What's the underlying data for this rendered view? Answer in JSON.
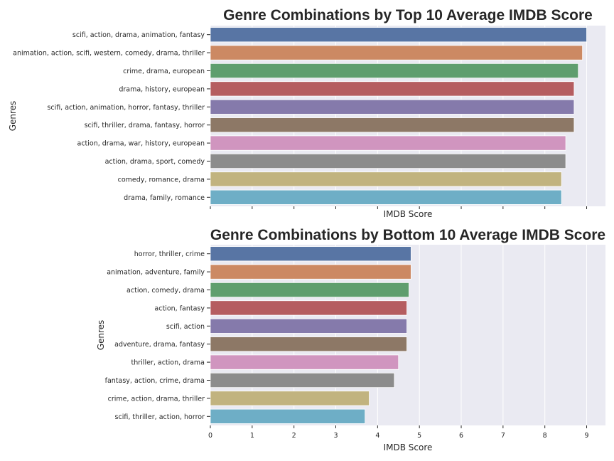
{
  "chart_data": [
    {
      "type": "bar",
      "orientation": "horizontal",
      "title": "Genre Combinations by Top 10 Average IMDB Score",
      "xlabel": "IMDB Score",
      "ylabel": "Genres",
      "xlim": [
        0,
        9.45
      ],
      "x_tick_labels_visible": false,
      "grid": true,
      "categories": [
        "scifi, action, drama, animation, fantasy",
        "animation, action, scifi, western, comedy, drama, thriller",
        "crime, drama, european",
        "drama, history, european",
        "scifi, action, animation, horror, fantasy, thriller",
        "scifi, thriller, drama, fantasy, horror",
        "action, drama, war, history, european",
        "action, drama, sport, comedy",
        "comedy, romance, drama",
        "drama, family, romance"
      ],
      "values": [
        9.0,
        8.9,
        8.8,
        8.7,
        8.7,
        8.7,
        8.5,
        8.5,
        8.4,
        8.4
      ]
    },
    {
      "type": "bar",
      "orientation": "horizontal",
      "title": "Genre Combinations by Bottom 10 Average IMDB Score",
      "xlabel": "IMDB Score",
      "ylabel": "Genres",
      "xlim": [
        0,
        9.45
      ],
      "xticks": [
        0,
        1,
        2,
        3,
        4,
        5,
        6,
        7,
        8,
        9
      ],
      "grid": true,
      "categories": [
        "horror, thriller, crime",
        "animation, adventure, family",
        "action, comedy, drama",
        "action, fantasy",
        "scifi, action",
        "adventure, drama, fantasy",
        "thriller, action, drama",
        "fantasy, action, crime, drama",
        "crime, action, drama, thriller",
        "scifi, thriller, action, horror"
      ],
      "values": [
        4.8,
        4.8,
        4.75,
        4.7,
        4.7,
        4.7,
        4.5,
        4.4,
        3.8,
        3.7
      ]
    }
  ],
  "palette": [
    "#5875a4",
    "#cc8963",
    "#5f9e6e",
    "#b55d60",
    "#857aab",
    "#8d7866",
    "#d095bf",
    "#8c8c8c",
    "#c1b37f",
    "#6eaec6"
  ],
  "panel_background": "#eaeaf2"
}
